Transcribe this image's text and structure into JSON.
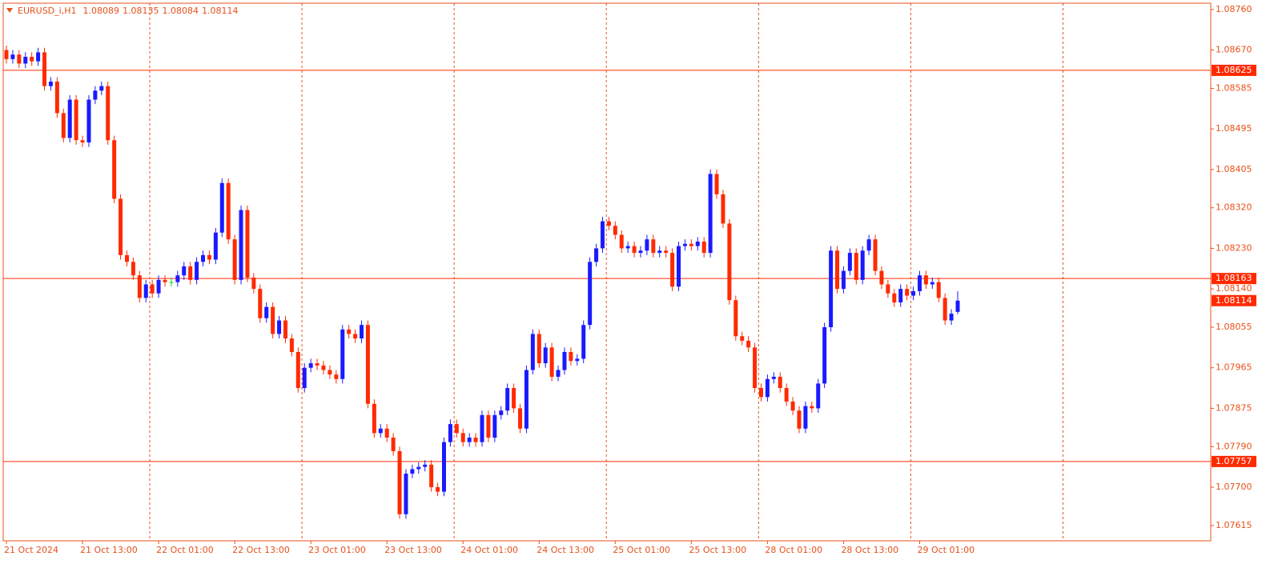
{
  "chart_data": {
    "type": "candlestick",
    "symbol": "EURUSD_i,H1",
    "header_ohlc": [
      1.08089,
      1.08135,
      1.08084,
      1.08114
    ],
    "categories": [
      "21 Oct 2024",
      null,
      null,
      null,
      null,
      null,
      null,
      null,
      null,
      null,
      null,
      null,
      "21 Oct 13:00",
      null,
      null,
      null,
      null,
      null,
      null,
      null,
      null,
      null,
      null,
      null,
      "22 Oct 01:00",
      null,
      null,
      null,
      null,
      null,
      null,
      null,
      null,
      null,
      null,
      null,
      "22 Oct 13:00",
      null,
      null,
      null,
      null,
      null,
      null,
      null,
      null,
      null,
      null,
      null,
      "23 Oct 01:00",
      null,
      null,
      null,
      null,
      null,
      null,
      null,
      null,
      null,
      null,
      null,
      "23 Oct 13:00",
      null,
      null,
      null,
      null,
      null,
      null,
      null,
      null,
      null,
      null,
      null,
      "24 Oct 01:00",
      null,
      null,
      null,
      null,
      null,
      null,
      null,
      null,
      null,
      null,
      null,
      "24 Oct 13:00",
      null,
      null,
      null,
      null,
      null,
      null,
      null,
      null,
      null,
      null,
      null,
      "25 Oct 01:00",
      null,
      null,
      null,
      null,
      null,
      null,
      null,
      null,
      null,
      null,
      null,
      "25 Oct 13:00",
      null,
      null,
      null,
      null,
      null,
      null,
      null,
      null,
      null,
      null,
      null,
      "28 Oct 01:00",
      null,
      null,
      null,
      null,
      null,
      null,
      null,
      null,
      null,
      null,
      null,
      "28 Oct 13:00",
      null,
      null,
      null,
      null,
      null,
      null,
      null,
      null,
      null,
      null,
      null,
      "29 Oct 01:00",
      null,
      null,
      null,
      null,
      null,
      null
    ],
    "open": [
      1.0867,
      1.0865,
      1.0866,
      1.0864,
      1.08655,
      1.08645,
      1.08665,
      1.0859,
      1.086,
      1.0853,
      1.08475,
      1.0856,
      1.0847,
      1.08465,
      1.0856,
      1.0858,
      1.0859,
      1.0847,
      1.0834,
      1.08215,
      1.082,
      1.0817,
      1.0812,
      1.0815,
      1.0813,
      1.0816,
      1.08155,
      1.08155,
      1.0817,
      1.0819,
      1.0816,
      1.082,
      1.08215,
      1.08205,
      1.08265,
      1.08375,
      1.0825,
      1.0816,
      1.08315,
      1.08165,
      1.0814,
      1.08075,
      1.081,
      1.0804,
      1.0807,
      1.0803,
      1.08,
      1.0792,
      1.07965,
      1.07975,
      1.0797,
      1.0796,
      1.0795,
      1.0794,
      1.0805,
      1.0804,
      1.0803,
      1.0806,
      1.07885,
      1.0782,
      1.0783,
      1.0781,
      1.0778,
      1.0764,
      1.0773,
      1.0774,
      1.07745,
      1.0775,
      1.077,
      1.0769,
      1.078,
      1.0784,
      1.0782,
      1.078,
      1.0781,
      1.078,
      1.0786,
      1.0781,
      1.0786,
      1.0787,
      1.0792,
      1.07875,
      1.0783,
      1.0796,
      1.0804,
      1.07975,
      1.0801,
      1.07945,
      1.0796,
      1.08,
      1.0798,
      1.07985,
      1.0806,
      1.082,
      1.0823,
      1.0829,
      1.0828,
      1.0826,
      1.0823,
      1.08235,
      1.0822,
      1.08225,
      1.0825,
      1.0822,
      1.08225,
      1.0822,
      1.08145,
      1.08235,
      1.0824,
      1.08235,
      1.08245,
      1.0822,
      1.08395,
      1.0835,
      1.08285,
      1.08115,
      1.08035,
      1.08025,
      1.0801,
      1.0792,
      1.079,
      1.0794,
      1.07945,
      1.0792,
      1.0789,
      1.0787,
      1.0783,
      1.0788,
      1.07875,
      1.0793,
      1.08055,
      1.08225,
      1.0814,
      1.0818,
      1.0822,
      1.0816,
      1.08225,
      1.0825,
      1.0818,
      1.0815,
      1.0813,
      1.0811,
      1.0814,
      1.08125,
      1.08135,
      1.0817,
      1.0815,
      1.08155,
      1.0812,
      1.0807,
      1.08089
    ],
    "high": [
      1.0868,
      1.0867,
      1.0867,
      1.08665,
      1.08665,
      1.08675,
      1.08675,
      1.0861,
      1.0861,
      1.0854,
      1.0857,
      1.0857,
      1.0848,
      1.0857,
      1.0859,
      1.086,
      1.086,
      1.0848,
      1.0835,
      1.08225,
      1.0821,
      1.0818,
      1.0816,
      1.0816,
      1.0817,
      1.0817,
      1.08165,
      1.0818,
      1.082,
      1.082,
      1.0821,
      1.08225,
      1.08225,
      1.08275,
      1.08385,
      1.08385,
      1.0826,
      1.08325,
      1.08325,
      1.08175,
      1.0815,
      1.0811,
      1.0811,
      1.0808,
      1.0808,
      1.0804,
      1.0801,
      1.07975,
      1.07985,
      1.07985,
      1.0798,
      1.0797,
      1.0796,
      1.0806,
      1.0806,
      1.0805,
      1.0807,
      1.0807,
      1.07895,
      1.0784,
      1.0784,
      1.0782,
      1.0779,
      1.0774,
      1.0775,
      1.07755,
      1.0776,
      1.0776,
      1.0771,
      1.0781,
      1.0785,
      1.0785,
      1.0783,
      1.0782,
      1.0782,
      1.0787,
      1.0787,
      1.0787,
      1.0788,
      1.0793,
      1.0793,
      1.07885,
      1.0797,
      1.0805,
      1.0805,
      1.0802,
      1.0802,
      1.0797,
      1.0801,
      1.0801,
      1.07995,
      1.0807,
      1.0821,
      1.0824,
      1.083,
      1.083,
      1.0829,
      1.0827,
      1.08245,
      1.08245,
      1.08235,
      1.0826,
      1.0826,
      1.08235,
      1.08235,
      1.0823,
      1.08245,
      1.0825,
      1.0825,
      1.08255,
      1.08255,
      1.08405,
      1.08405,
      1.0836,
      1.08295,
      1.08125,
      1.08045,
      1.08035,
      1.0802,
      1.0793,
      1.0795,
      1.07955,
      1.07955,
      1.0793,
      1.079,
      1.0788,
      1.0789,
      1.0789,
      1.0794,
      1.08065,
      1.08235,
      1.08235,
      1.0819,
      1.0823,
      1.0823,
      1.08235,
      1.0826,
      1.0826,
      1.0819,
      1.0816,
      1.0814,
      1.0815,
      1.0815,
      1.08145,
      1.0818,
      1.0818,
      1.08165,
      1.08165,
      1.0813,
      1.08095,
      1.08135
    ],
    "low": [
      1.0864,
      1.0864,
      1.0863,
      1.0863,
      1.08635,
      1.08635,
      1.0858,
      1.0858,
      1.0852,
      1.08465,
      1.08465,
      1.0846,
      1.08455,
      1.08455,
      1.0855,
      1.0857,
      1.0846,
      1.0833,
      1.08205,
      1.0819,
      1.0816,
      1.0811,
      1.0811,
      1.0812,
      1.0812,
      1.08145,
      1.08145,
      1.08145,
      1.0816,
      1.0815,
      1.0815,
      1.0819,
      1.08195,
      1.08195,
      1.08255,
      1.0824,
      1.0815,
      1.0815,
      1.08155,
      1.0813,
      1.08065,
      1.08065,
      1.0803,
      1.0803,
      1.0802,
      1.0799,
      1.0791,
      1.0791,
      1.07955,
      1.0796,
      1.0795,
      1.0794,
      1.0793,
      1.0793,
      1.0803,
      1.0802,
      1.0802,
      1.07875,
      1.0781,
      1.0781,
      1.078,
      1.0777,
      1.0763,
      1.0763,
      1.0772,
      1.0773,
      1.07735,
      1.0769,
      1.0768,
      1.0768,
      1.0779,
      1.0781,
      1.0779,
      1.0779,
      1.0779,
      1.0779,
      1.078,
      1.078,
      1.0785,
      1.0786,
      1.07865,
      1.0782,
      1.0782,
      1.0795,
      1.07965,
      1.07965,
      1.07935,
      1.07935,
      1.0795,
      1.0797,
      1.0797,
      1.07975,
      1.0805,
      1.0819,
      1.0822,
      1.0827,
      1.0825,
      1.0822,
      1.0822,
      1.0821,
      1.0821,
      1.08215,
      1.0821,
      1.0821,
      1.0821,
      1.08135,
      1.08135,
      1.08225,
      1.08225,
      1.08225,
      1.0821,
      1.0821,
      1.0834,
      1.08275,
      1.08105,
      1.08025,
      1.08015,
      1.08,
      1.0791,
      1.0789,
      1.0789,
      1.0793,
      1.0791,
      1.0788,
      1.0786,
      1.0782,
      1.0782,
      1.07865,
      1.07865,
      1.0792,
      1.08045,
      1.0813,
      1.0813,
      1.0817,
      1.0815,
      1.0815,
      1.08215,
      1.0817,
      1.0814,
      1.0812,
      1.081,
      1.081,
      1.08115,
      1.08115,
      1.08125,
      1.0814,
      1.0814,
      1.0811,
      1.0806,
      1.0806,
      1.08084
    ],
    "close": [
      1.0865,
      1.0866,
      1.0864,
      1.08655,
      1.08645,
      1.08665,
      1.0859,
      1.086,
      1.0853,
      1.08475,
      1.0856,
      1.0847,
      1.08465,
      1.0856,
      1.0858,
      1.0859,
      1.0847,
      1.0834,
      1.08215,
      1.082,
      1.0817,
      1.0812,
      1.0815,
      1.0813,
      1.0816,
      1.08155,
      1.08155,
      1.0817,
      1.0819,
      1.0816,
      1.082,
      1.08215,
      1.08205,
      1.08265,
      1.08375,
      1.0825,
      1.0816,
      1.08315,
      1.08165,
      1.0814,
      1.08075,
      1.081,
      1.0804,
      1.0807,
      1.0803,
      1.08,
      1.0792,
      1.07965,
      1.07975,
      1.0797,
      1.0796,
      1.0795,
      1.0794,
      1.0805,
      1.0804,
      1.0803,
      1.0806,
      1.07885,
      1.0782,
      1.0783,
      1.0781,
      1.0778,
      1.0764,
      1.0773,
      1.0774,
      1.07745,
      1.0775,
      1.077,
      1.0769,
      1.078,
      1.0784,
      1.0782,
      1.078,
      1.0781,
      1.078,
      1.0786,
      1.0781,
      1.0786,
      1.0787,
      1.0792,
      1.07875,
      1.0783,
      1.0796,
      1.0804,
      1.07975,
      1.0801,
      1.07945,
      1.0796,
      1.08,
      1.0798,
      1.07985,
      1.0806,
      1.082,
      1.0823,
      1.0829,
      1.0828,
      1.0826,
      1.0823,
      1.08235,
      1.0822,
      1.08225,
      1.0825,
      1.0822,
      1.08225,
      1.0822,
      1.08145,
      1.08235,
      1.0824,
      1.08235,
      1.08245,
      1.0822,
      1.08395,
      1.0835,
      1.08285,
      1.08115,
      1.08035,
      1.08025,
      1.0801,
      1.0792,
      1.079,
      1.0794,
      1.07945,
      1.0792,
      1.0789,
      1.0787,
      1.0783,
      1.0788,
      1.07875,
      1.0793,
      1.08055,
      1.08225,
      1.0814,
      1.0818,
      1.0822,
      1.0816,
      1.08225,
      1.0825,
      1.0818,
      1.0815,
      1.0813,
      1.0811,
      1.0814,
      1.08125,
      1.08135,
      1.0817,
      1.0815,
      1.08155,
      1.0812,
      1.0807,
      1.08085,
      1.08114
    ],
    "ylim": [
      1.07581,
      1.08774
    ],
    "yticks": [
      {
        "value": 1.0876,
        "label": "1.08760"
      },
      {
        "value": 1.0867,
        "label": "1.08670"
      },
      1.08585,
      1.08495,
      1.08405,
      {
        "value": 1.0832,
        "label": "1.08320"
      },
      {
        "value": 1.0823,
        "label": "1.08230"
      },
      {
        "value": 1.0814,
        "label": "1.08140"
      },
      1.08055,
      1.07965,
      1.07875,
      {
        "value": 1.0779,
        "label": "1.07790"
      },
      {
        "value": 1.077,
        "label": "1.07700"
      },
      1.07615
    ],
    "levels": [
      1.08625,
      1.08163,
      1.07757
    ],
    "bid": 1.08114,
    "up_color": "#1a1aff",
    "down_color": "#ff2a00",
    "flat_color": "#22cc22",
    "level_color": "#ff2a00",
    "grid": true
  }
}
